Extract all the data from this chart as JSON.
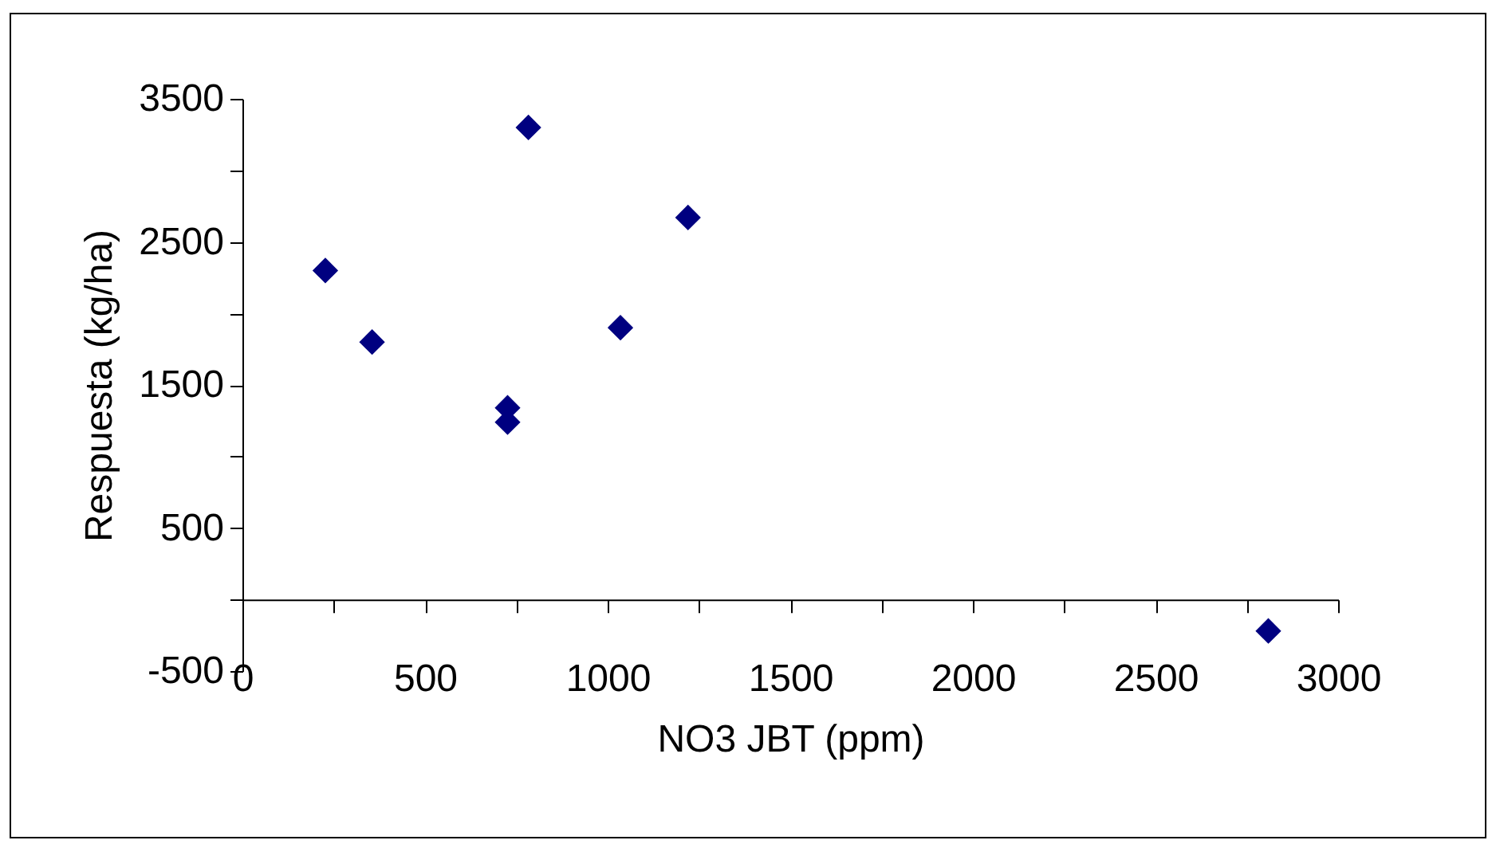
{
  "chart_data": {
    "type": "scatter",
    "xlabel": "NO3 JBT (ppm)",
    "ylabel": "Respuesta (kg/ha)",
    "x": [
      227,
      355,
      726,
      726,
      783,
      1035,
      1220,
      2809
    ],
    "series": [
      {
        "color": "#000080",
        "values": [
          2300,
          1800,
          1340,
          1240,
          3300,
          1900,
          2670,
          -220
        ]
      }
    ],
    "xlim": [
      0,
      3000
    ],
    "xticks": [
      0,
      {
        "value": 250,
        "label": null
      },
      500,
      {
        "value": 750,
        "label": null
      },
      1000,
      {
        "value": 1250,
        "label": null
      },
      1500,
      {
        "value": 1750,
        "label": null
      },
      2000,
      {
        "value": 2250,
        "label": null
      },
      2500,
      {
        "value": 2750,
        "label": null
      },
      3000
    ],
    "ylim": [
      -500,
      3500
    ],
    "yticks": [
      -500,
      {
        "value": 0,
        "label": null
      },
      500,
      {
        "value": 1000,
        "label": null
      },
      1500,
      {
        "value": 2000,
        "label": null
      },
      2500,
      {
        "value": 3000,
        "label": null
      },
      3500
    ],
    "marker": "diamond",
    "grid": false
  }
}
